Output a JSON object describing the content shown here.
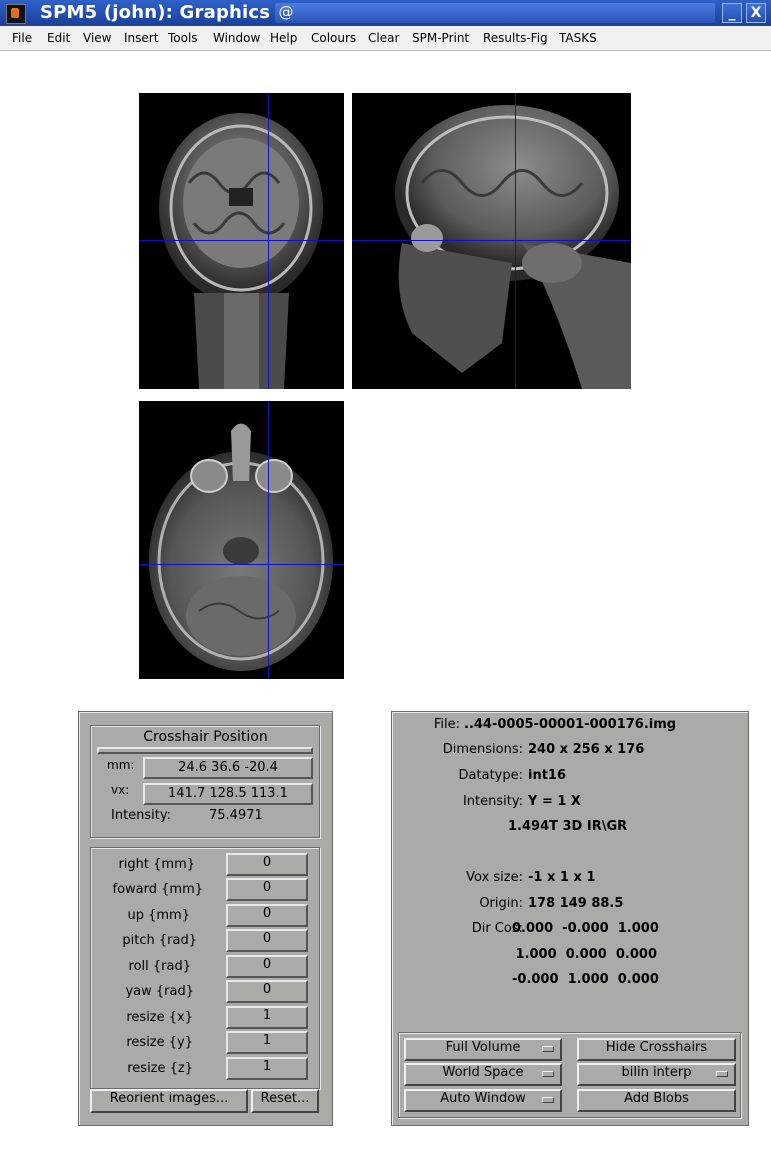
{
  "window": {
    "title": "SPM5 (john): Graphics"
  },
  "menubar": {
    "items": [
      {
        "label": "File"
      },
      {
        "label": "Edit"
      },
      {
        "label": "View"
      },
      {
        "label": "Insert"
      },
      {
        "label": "Tools"
      },
      {
        "label": "Window"
      },
      {
        "label": "Help"
      },
      {
        "label": "Colours"
      },
      {
        "label": "Clear"
      },
      {
        "label": "SPM-Print"
      },
      {
        "label": "Results-Fig"
      },
      {
        "label": "TASKS"
      }
    ]
  },
  "crosshair_panel": {
    "title": "Crosshair Position",
    "mm_label": "mm:",
    "mm_value": "24.6 36.6 -20.4",
    "vx_label": "vx:",
    "vx_value": "141.7 128.5 113.1",
    "intensity_label": "Intensity:",
    "intensity_value": "75.4971"
  },
  "reorient": {
    "fields": [
      {
        "label": "right  {mm}",
        "value": "0"
      },
      {
        "label": "foward  {mm}",
        "value": "0"
      },
      {
        "label": "up  {mm}",
        "value": "0"
      },
      {
        "label": "pitch  {rad}",
        "value": "0"
      },
      {
        "label": "roll  {rad}",
        "value": "0"
      },
      {
        "label": "yaw  {rad}",
        "value": "0"
      },
      {
        "label": "resize  {x}",
        "value": "1"
      },
      {
        "label": "resize  {y}",
        "value": "1"
      },
      {
        "label": "resize  {z}",
        "value": "1"
      }
    ],
    "reorient_button": "Reorient images...",
    "reset_button": "Reset..."
  },
  "info_panel": {
    "file_label": "File:",
    "file_value": "..44-0005-00001-000176.img",
    "dimensions_label": "Dimensions:",
    "dimensions_value": "240 x 256 x 176",
    "datatype_label": "Datatype:",
    "datatype_value": "int16",
    "intensity_label": "Intensity:",
    "intensity_value": "Y = 1 X",
    "description": "1.494T 3D IR\\GR",
    "voxsize_label": "Vox size:",
    "voxsize_value": "-1 x 1 x 1",
    "origin_label": "Origin:",
    "origin_value": "178 149 88.5",
    "dircos_label": "Dir Cos:",
    "dircos_rows": [
      "0.000  -0.000  1.000",
      "1.000  0.000  0.000",
      "-0.000  1.000  0.000"
    ]
  },
  "controls": {
    "full_volume": "Full Volume",
    "hide_crosshairs": "Hide Crosshairs",
    "world_space": "World Space",
    "interp": "bilin interp",
    "auto_window": "Auto Window",
    "add_blobs": "Add Blobs"
  },
  "colors": {
    "crosshair": "#1010c8",
    "panel": "#a9aba7",
    "titlebar": "#2f61c8"
  }
}
